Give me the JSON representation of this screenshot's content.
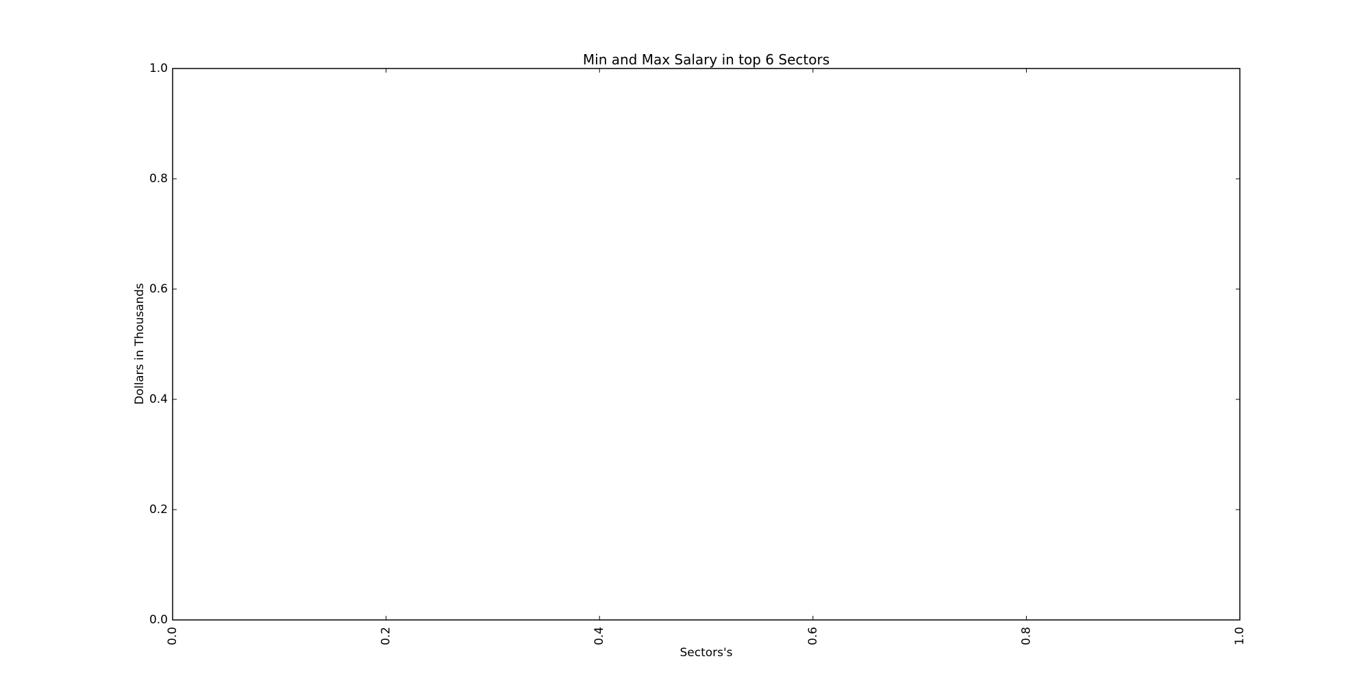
{
  "chart_data": {
    "type": "bar",
    "title": "Min and Max Salary in top 6 Sectors",
    "xlabel": "Sectors's",
    "ylabel": "Dollars in Thousands",
    "xlim": [
      0.0,
      1.0
    ],
    "ylim": [
      0.0,
      1.0
    ],
    "x_ticks": [
      "0.0",
      "0.2",
      "0.4",
      "0.6",
      "0.8",
      "1.0"
    ],
    "y_ticks": [
      "0.0",
      "0.2",
      "0.4",
      "0.6",
      "0.8",
      "1.0"
    ],
    "x_tick_rotation": "vertical",
    "categories": [],
    "series": [],
    "grid": false,
    "legend": "none",
    "colors": {
      "background": "#ffffff",
      "axes": "#000000",
      "text": "#000000"
    }
  }
}
